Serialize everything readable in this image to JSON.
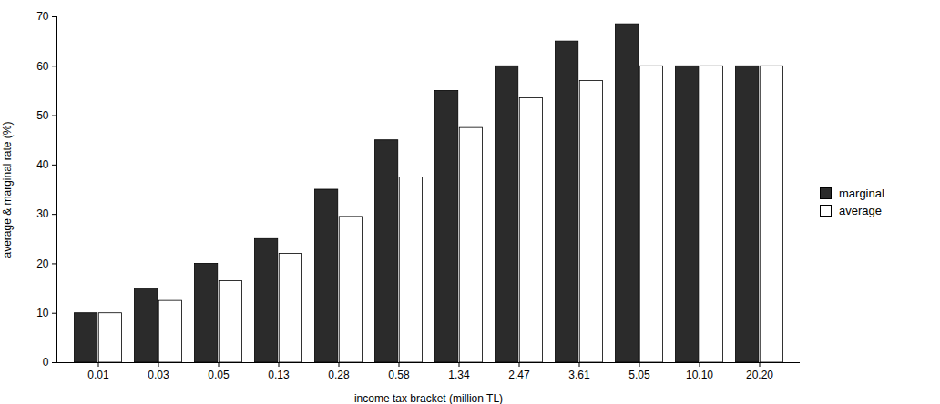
{
  "chart_data": {
    "type": "bar",
    "xlabel": "income tax bracket (million TL)",
    "ylabel": "average & marginal rate (%)",
    "categories": [
      "0.01",
      "0.03",
      "0.05",
      "0.13",
      "0.28",
      "0.58",
      "1.34",
      "2.47",
      "3.61",
      "5.05",
      "10.10",
      "20.20"
    ],
    "series": [
      {
        "name": "marginal",
        "color": "#2b2b2b",
        "values": [
          10,
          15,
          20,
          25,
          35,
          45,
          55,
          60,
          65,
          68.5,
          60,
          60
        ]
      },
      {
        "name": "average",
        "color": "#ffffff",
        "values": [
          10,
          12.5,
          16.5,
          22,
          29.5,
          37.5,
          47.5,
          53.5,
          57,
          60,
          60,
          60
        ]
      }
    ],
    "ylim": [
      0,
      70
    ],
    "yticks": [
      0,
      10,
      20,
      30,
      40,
      50,
      60,
      70
    ],
    "grid": false,
    "legend": "right"
  }
}
